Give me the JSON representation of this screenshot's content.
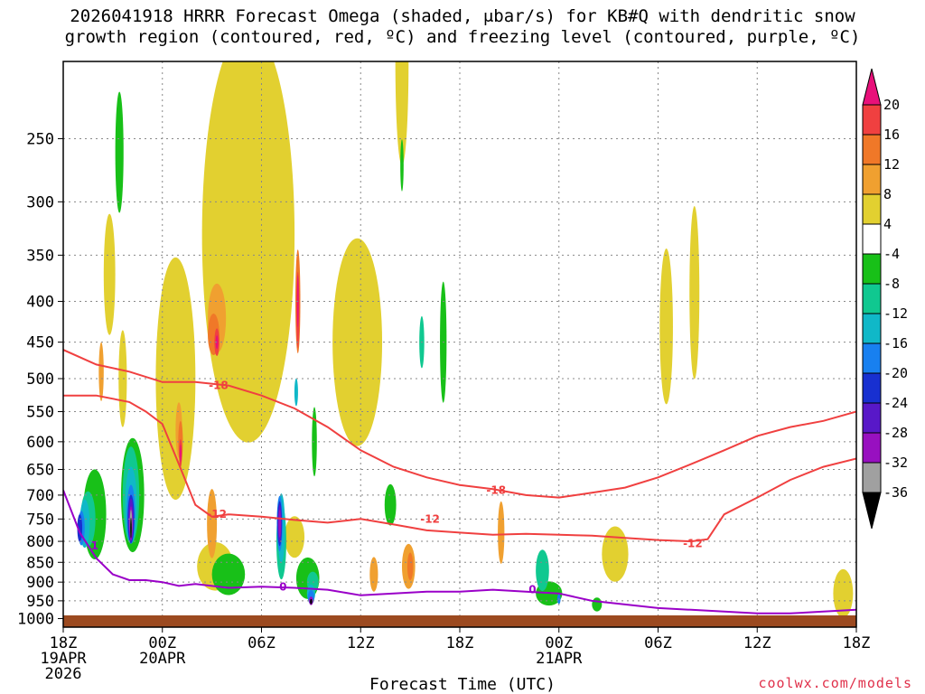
{
  "title_line_1": "2026041918 HRRR Forecast Omega (shaded, μbar/s) for KB#Q with dendritic snow",
  "title_line_2": "growth region (contoured, red, ºC) and freezing level (contoured, purple, ºC)",
  "credit": "coolwx.com/models",
  "colors": {
    "frame": "#000000",
    "grid": "#888888",
    "ground": "#9c4a20",
    "dgz_contour": "#f04040",
    "freezing_contour": "#9a00c8"
  },
  "chart_data": {
    "type": "heatmap",
    "title": "2026041918 HRRR Forecast Omega (shaded, μbar/s) for KB#Q with dendritic snow growth region (contoured, red, ºC) and freezing level (contoured, purple, ºC)",
    "xlabel": "Forecast Time (UTC)",
    "ylabel": "",
    "y_scale": "log-pressure",
    "y_inverted": true,
    "ylim_hPa": [
      200,
      1025
    ],
    "xlim_hours": [
      0,
      48
    ],
    "grid": true,
    "y_ticks": [
      {
        "label": "250",
        "p": 250
      },
      {
        "label": "300",
        "p": 300
      },
      {
        "label": "350",
        "p": 350
      },
      {
        "label": "400",
        "p": 400
      },
      {
        "label": "450",
        "p": 450
      },
      {
        "label": "500",
        "p": 500
      },
      {
        "label": "550",
        "p": 550
      },
      {
        "label": "600",
        "p": 600
      },
      {
        "label": "650",
        "p": 650
      },
      {
        "label": "700",
        "p": 700
      },
      {
        "label": "750",
        "p": 750
      },
      {
        "label": "800",
        "p": 800
      },
      {
        "label": "850",
        "p": 850
      },
      {
        "label": "900",
        "p": 900
      },
      {
        "label": "950",
        "p": 950
      },
      {
        "label": "1000",
        "p": 1000
      }
    ],
    "x_ticks": [
      {
        "hour": 0,
        "lines": [
          "18Z",
          "19APR",
          "2026"
        ]
      },
      {
        "hour": 6,
        "lines": [
          "00Z",
          "20APR"
        ]
      },
      {
        "hour": 12,
        "lines": [
          "06Z"
        ]
      },
      {
        "hour": 18,
        "lines": [
          "12Z"
        ]
      },
      {
        "hour": 24,
        "lines": [
          "18Z"
        ]
      },
      {
        "hour": 30,
        "lines": [
          "00Z",
          "21APR"
        ]
      },
      {
        "hour": 36,
        "lines": [
          "06Z"
        ]
      },
      {
        "hour": 42,
        "lines": [
          "12Z"
        ]
      },
      {
        "hour": 48,
        "lines": [
          "18Z"
        ]
      }
    ],
    "colorbar": {
      "labels": [
        "20",
        "16",
        "12",
        "8",
        "4",
        "-4",
        "-8",
        "-12",
        "-16",
        "-20",
        "-24",
        "-28",
        "-32",
        "-36"
      ],
      "bins": [
        {
          "lo": 20,
          "hi": null,
          "color": "#e8107a"
        },
        {
          "lo": 16,
          "hi": 20,
          "color": "#f04040"
        },
        {
          "lo": 12,
          "hi": 16,
          "color": "#f07828"
        },
        {
          "lo": 8,
          "hi": 12,
          "color": "#f0a030"
        },
        {
          "lo": 4,
          "hi": 8,
          "color": "#e2d030"
        },
        {
          "lo": -4,
          "hi": 4,
          "color": "#ffffff"
        },
        {
          "lo": -8,
          "hi": -4,
          "color": "#18c018"
        },
        {
          "lo": -12,
          "hi": -8,
          "color": "#10c890"
        },
        {
          "lo": -16,
          "hi": -12,
          "color": "#10b8c8"
        },
        {
          "lo": -20,
          "hi": -16,
          "color": "#1880f0"
        },
        {
          "lo": -24,
          "hi": -20,
          "color": "#1830d0"
        },
        {
          "lo": -28,
          "hi": -24,
          "color": "#5818c8"
        },
        {
          "lo": -32,
          "hi": -28,
          "color": "#9810c0"
        },
        {
          "lo": -36,
          "hi": -32,
          "color": "#a0a0a0"
        },
        {
          "lo": null,
          "hi": -36,
          "color": "#000000"
        }
      ]
    },
    "omega_cells": [
      {
        "hour": 2.8,
        "p": 370,
        "w": 0.7,
        "h": 0.35,
        "value": 5
      },
      {
        "hour": 3.6,
        "p": 500,
        "w": 0.5,
        "h": 0.28,
        "value": 5
      },
      {
        "hour": 6.8,
        "p": 500,
        "w": 2.4,
        "h": 0.7,
        "value": 5
      },
      {
        "hour": 11.2,
        "p": 330,
        "w": 5.6,
        "h": 1.2,
        "value": 5
      },
      {
        "hour": 9.5,
        "p": 300,
        "w": 1.2,
        "h": 0.6,
        "value": 5
      },
      {
        "hour": 17.8,
        "p": 450,
        "w": 3.0,
        "h": 0.6,
        "value": 5
      },
      {
        "hour": 20.5,
        "p": 200,
        "w": 0.8,
        "h": 0.6,
        "value": 5
      },
      {
        "hour": 36.5,
        "p": 430,
        "w": 0.8,
        "h": 0.45,
        "value": 5
      },
      {
        "hour": 38.2,
        "p": 390,
        "w": 0.6,
        "h": 0.5,
        "value": 5
      },
      {
        "hour": 33.4,
        "p": 830,
        "w": 1.6,
        "h": 0.16,
        "value": 5
      },
      {
        "hour": 47.2,
        "p": 930,
        "w": 1.2,
        "h": 0.14,
        "value": 5
      },
      {
        "hour": 9.2,
        "p": 860,
        "w": 2.2,
        "h": 0.14,
        "value": 5
      },
      {
        "hour": 14.0,
        "p": 790,
        "w": 1.2,
        "h": 0.12,
        "value": 5
      },
      {
        "hour": 2.3,
        "p": 490,
        "w": 0.3,
        "h": 0.17,
        "value": 9
      },
      {
        "hour": 7.0,
        "p": 580,
        "w": 0.4,
        "h": 0.16,
        "value": 9
      },
      {
        "hour": 9.3,
        "p": 420,
        "w": 1.1,
        "h": 0.2,
        "value": 9
      },
      {
        "hour": 9.0,
        "p": 760,
        "w": 0.6,
        "h": 0.2,
        "value": 9
      },
      {
        "hour": 18.8,
        "p": 880,
        "w": 0.5,
        "h": 0.1,
        "value": 9
      },
      {
        "hour": 20.9,
        "p": 860,
        "w": 0.8,
        "h": 0.13,
        "value": 9
      },
      {
        "hour": 26.5,
        "p": 780,
        "w": 0.4,
        "h": 0.18,
        "value": 9
      },
      {
        "hour": 9.1,
        "p": 440,
        "w": 0.7,
        "h": 0.12,
        "value": 13
      },
      {
        "hour": 7.1,
        "p": 600,
        "w": 0.28,
        "h": 0.12,
        "value": 13
      },
      {
        "hour": 14.2,
        "p": 400,
        "w": 0.3,
        "h": 0.3,
        "value": 13
      },
      {
        "hour": 21.0,
        "p": 860,
        "w": 0.35,
        "h": 0.08,
        "value": 13
      },
      {
        "hour": 7.1,
        "p": 620,
        "w": 0.18,
        "h": 0.08,
        "value": 17
      },
      {
        "hour": 9.3,
        "p": 450,
        "w": 0.3,
        "h": 0.08,
        "value": 17
      },
      {
        "hour": 14.2,
        "p": 410,
        "w": 0.18,
        "h": 0.22,
        "value": 17
      },
      {
        "hour": 7.1,
        "p": 620,
        "w": 0.1,
        "h": 0.05,
        "value": 22
      },
      {
        "hour": 9.3,
        "p": 450,
        "w": 0.15,
        "h": 0.04,
        "value": 22
      },
      {
        "hour": 14.2,
        "p": 400,
        "w": 0.1,
        "h": 0.15,
        "value": 22
      },
      {
        "hour": 3.4,
        "p": 260,
        "w": 0.5,
        "h": 0.35,
        "value": -5
      },
      {
        "hour": 1.9,
        "p": 740,
        "w": 1.4,
        "h": 0.26,
        "value": -5
      },
      {
        "hour": 4.2,
        "p": 700,
        "w": 1.4,
        "h": 0.33,
        "value": -5
      },
      {
        "hour": 10.0,
        "p": 880,
        "w": 2.0,
        "h": 0.12,
        "value": -5
      },
      {
        "hour": 15.2,
        "p": 600,
        "w": 0.3,
        "h": 0.2,
        "value": -5
      },
      {
        "hour": 14.8,
        "p": 890,
        "w": 1.4,
        "h": 0.12,
        "value": -5
      },
      {
        "hour": 20.5,
        "p": 270,
        "w": 0.2,
        "h": 0.15,
        "value": -5
      },
      {
        "hour": 23.0,
        "p": 450,
        "w": 0.4,
        "h": 0.35,
        "value": -5
      },
      {
        "hour": 19.8,
        "p": 720,
        "w": 0.7,
        "h": 0.12,
        "value": -5
      },
      {
        "hour": 29.4,
        "p": 930,
        "w": 1.6,
        "h": 0.07,
        "value": -5
      },
      {
        "hour": 32.3,
        "p": 960,
        "w": 0.6,
        "h": 0.04,
        "value": -5
      },
      {
        "hour": 1.5,
        "p": 750,
        "w": 0.9,
        "h": 0.16,
        "value": -9
      },
      {
        "hour": 4.1,
        "p": 700,
        "w": 1.0,
        "h": 0.28,
        "value": -9
      },
      {
        "hour": 13.2,
        "p": 800,
        "w": 0.6,
        "h": 0.22,
        "value": -9
      },
      {
        "hour": 15.1,
        "p": 900,
        "w": 0.7,
        "h": 0.06,
        "value": -9
      },
      {
        "hour": 21.7,
        "p": 450,
        "w": 0.3,
        "h": 0.15,
        "value": -9
      },
      {
        "hour": 29.0,
        "p": 870,
        "w": 0.8,
        "h": 0.12,
        "value": -9
      },
      {
        "hour": 1.3,
        "p": 760,
        "w": 0.6,
        "h": 0.14,
        "value": -13
      },
      {
        "hour": 4.1,
        "p": 720,
        "w": 0.7,
        "h": 0.22,
        "value": -13
      },
      {
        "hour": 13.2,
        "p": 770,
        "w": 0.45,
        "h": 0.2,
        "value": -13
      },
      {
        "hour": 15.0,
        "p": 930,
        "w": 0.5,
        "h": 0.05,
        "value": -13
      },
      {
        "hour": 14.1,
        "p": 520,
        "w": 0.22,
        "h": 0.08,
        "value": -13
      },
      {
        "hour": 1.1,
        "p": 770,
        "w": 0.4,
        "h": 0.1,
        "value": -17
      },
      {
        "hour": 4.1,
        "p": 740,
        "w": 0.5,
        "h": 0.17,
        "value": -17
      },
      {
        "hour": 13.1,
        "p": 760,
        "w": 0.35,
        "h": 0.16,
        "value": -17
      },
      {
        "hour": 15.0,
        "p": 940,
        "w": 0.4,
        "h": 0.04,
        "value": -17
      },
      {
        "hour": 30.0,
        "p": 945,
        "w": 0.2,
        "h": 0.03,
        "value": -17
      },
      {
        "hour": 1.0,
        "p": 770,
        "w": 0.3,
        "h": 0.08,
        "value": -21
      },
      {
        "hour": 4.1,
        "p": 750,
        "w": 0.4,
        "h": 0.14,
        "value": -21
      },
      {
        "hour": 13.1,
        "p": 760,
        "w": 0.28,
        "h": 0.13,
        "value": -21
      },
      {
        "hour": 4.1,
        "p": 750,
        "w": 0.3,
        "h": 0.12,
        "value": -25
      },
      {
        "hour": 13.1,
        "p": 760,
        "w": 0.22,
        "h": 0.11,
        "value": -25
      },
      {
        "hour": 4.1,
        "p": 760,
        "w": 0.22,
        "h": 0.1,
        "value": -29
      },
      {
        "hour": 13.1,
        "p": 760,
        "w": 0.15,
        "h": 0.08,
        "value": -29
      },
      {
        "hour": 15.0,
        "p": 950,
        "w": 0.25,
        "h": 0.025,
        "value": -29
      },
      {
        "hour": 4.1,
        "p": 760,
        "w": 0.14,
        "h": 0.08,
        "value": -34
      },
      {
        "hour": 4.1,
        "p": 770,
        "w": 0.09,
        "h": 0.06,
        "value": -40
      },
      {
        "hour": 15.0,
        "p": 952,
        "w": 0.13,
        "h": 0.015,
        "value": -40
      }
    ],
    "contours": [
      {
        "kind": "dgz",
        "color": "#f04040",
        "labels": [
          {
            "text": "-18",
            "hour": 9.4,
            "p": 510
          },
          {
            "text": "-18",
            "hour": 26.2,
            "p": 690
          }
        ],
        "points": [
          [
            0,
            460
          ],
          [
            2,
            480
          ],
          [
            4,
            490
          ],
          [
            6,
            505
          ],
          [
            8,
            505
          ],
          [
            10,
            510
          ],
          [
            12,
            525
          ],
          [
            14,
            545
          ],
          [
            16,
            575
          ],
          [
            18,
            615
          ],
          [
            20,
            645
          ],
          [
            22,
            665
          ],
          [
            24,
            680
          ],
          [
            26,
            688
          ],
          [
            28,
            700
          ],
          [
            30,
            705
          ],
          [
            32,
            695
          ],
          [
            34,
            685
          ],
          [
            36,
            665
          ],
          [
            38,
            640
          ],
          [
            40,
            615
          ],
          [
            42,
            590
          ],
          [
            44,
            575
          ],
          [
            46,
            565
          ],
          [
            48,
            550
          ]
        ]
      },
      {
        "kind": "dgz",
        "color": "#f04040",
        "labels": [
          {
            "text": "-12",
            "hour": 9.3,
            "p": 740
          },
          {
            "text": "-12",
            "hour": 22.2,
            "p": 750
          },
          {
            "text": "-12",
            "hour": 38.1,
            "p": 805
          }
        ],
        "points": [
          [
            0,
            525
          ],
          [
            2,
            525
          ],
          [
            4,
            535
          ],
          [
            5,
            550
          ],
          [
            6,
            570
          ],
          [
            7,
            640
          ],
          [
            8,
            720
          ],
          [
            9,
            745
          ],
          [
            10,
            740
          ],
          [
            12,
            745
          ],
          [
            14,
            752
          ],
          [
            16,
            758
          ],
          [
            18,
            750
          ],
          [
            20,
            762
          ],
          [
            22,
            775
          ],
          [
            24,
            780
          ],
          [
            26,
            785
          ],
          [
            28,
            783
          ],
          [
            30,
            785
          ],
          [
            32,
            787
          ],
          [
            34,
            792
          ],
          [
            36,
            797
          ],
          [
            38,
            800
          ],
          [
            39,
            795
          ],
          [
            40,
            740
          ],
          [
            42,
            705
          ],
          [
            44,
            670
          ],
          [
            46,
            645
          ],
          [
            48,
            630
          ]
        ]
      },
      {
        "kind": "freezing",
        "color": "#9a00c8",
        "labels": [
          {
            "text": "1",
            "hour": 1.9,
            "p": 810
          },
          {
            "text": "0",
            "hour": 13.3,
            "p": 912
          },
          {
            "text": "0",
            "hour": 28.4,
            "p": 920
          }
        ],
        "points": [
          [
            0,
            690
          ],
          [
            1,
            780
          ],
          [
            2,
            840
          ],
          [
            3,
            880
          ],
          [
            4,
            895
          ],
          [
            5,
            895
          ],
          [
            6,
            900
          ],
          [
            7,
            910
          ],
          [
            8,
            905
          ],
          [
            9,
            910
          ],
          [
            10,
            915
          ],
          [
            12,
            912
          ],
          [
            14,
            915
          ],
          [
            16,
            920
          ],
          [
            18,
            935
          ],
          [
            20,
            930
          ],
          [
            22,
            925
          ],
          [
            24,
            925
          ],
          [
            26,
            920
          ],
          [
            28,
            925
          ],
          [
            30,
            930
          ],
          [
            32,
            950
          ],
          [
            34,
            960
          ],
          [
            36,
            970
          ],
          [
            38,
            975
          ],
          [
            40,
            980
          ],
          [
            42,
            985
          ],
          [
            44,
            985
          ],
          [
            46,
            980
          ],
          [
            48,
            975
          ]
        ]
      }
    ]
  },
  "x_axis_title": "Forecast Time (UTC)"
}
